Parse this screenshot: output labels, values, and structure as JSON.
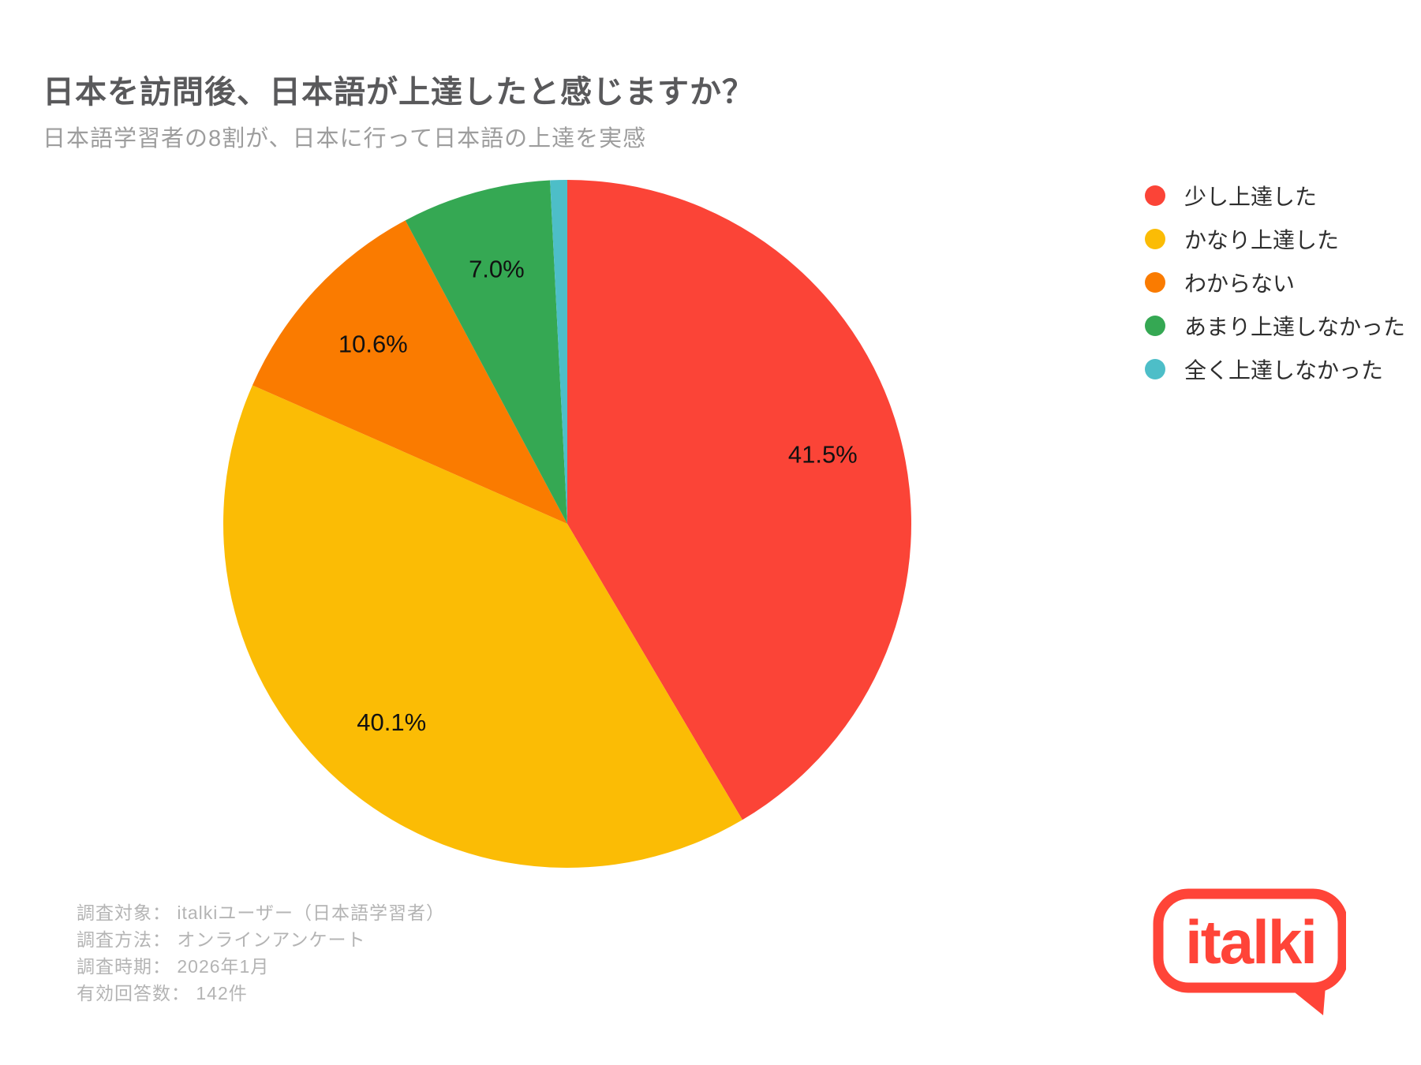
{
  "header": {
    "title": "日本を訪問後、日本語が上達したと感じますか？",
    "subtitle": "日本語学習者の8割が、日本に行って日本語の上達を実感"
  },
  "chart_data": {
    "type": "pie",
    "title": "日本を訪問後、日本語が上達したと感じますか？",
    "subtitle": "日本語学習者の8割が、日本に行って日本語の上達を実感",
    "categories": [
      "少し上達した",
      "かなり上達した",
      "わからない",
      "あまり上達しなかった",
      "全く上達しなかった"
    ],
    "values": [
      41.5,
      40.1,
      10.6,
      7.0,
      0.8
    ],
    "unit": "%",
    "colors": [
      "#FB4437",
      "#FBBC05",
      "#FA7B00",
      "#35A853",
      "#4DBEC8"
    ],
    "data_labels": [
      "41.5%",
      "40.1%",
      "10.6%",
      "7.0%",
      null
    ],
    "start_angle_deg": 0,
    "direction": "clockwise",
    "legend_position": "right"
  },
  "footer": {
    "lines": [
      "調査対象： italkiユーザー（日本語学習者）",
      "調査方法： オンラインアンケート",
      "調査時期： 2026年1月",
      "有効回答数： 142件"
    ]
  },
  "logo": {
    "text": "italki",
    "color": "#FF4438"
  }
}
